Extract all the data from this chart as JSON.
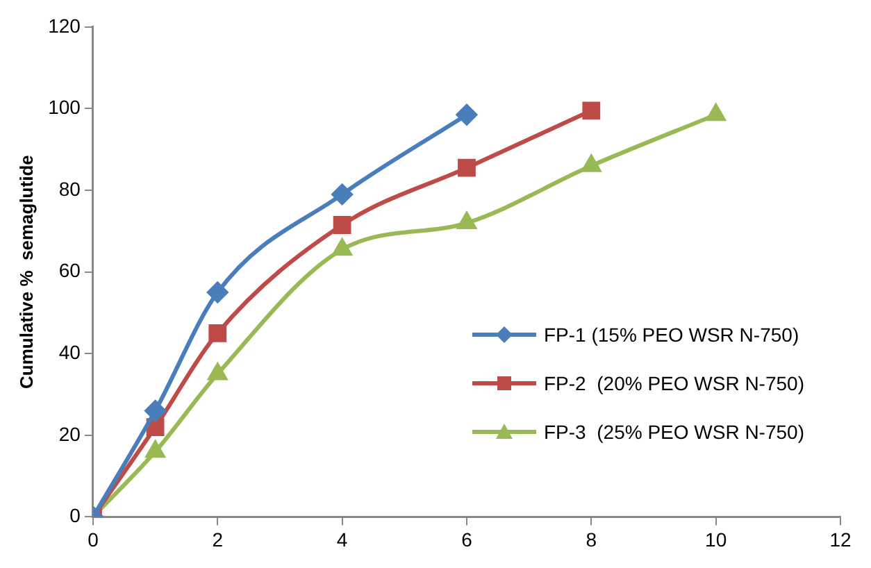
{
  "chart_data": {
    "type": "line",
    "ylabel": "Cumulative %  semaglutide",
    "xlim": [
      0,
      12
    ],
    "xticks": [
      0,
      2,
      4,
      6,
      8,
      10,
      12
    ],
    "ylim": [
      0,
      120
    ],
    "yticks": [
      0,
      20,
      40,
      60,
      80,
      100,
      120
    ],
    "grid": false,
    "legend": "right",
    "line_style": "solid",
    "series": [
      {
        "name": "FP-1 (15% PEO WSR N-750)",
        "color": "#4a7ebb",
        "marker": "diamond",
        "x": [
          0,
          1,
          2,
          4,
          6
        ],
        "values": [
          0,
          26,
          55,
          79,
          98.5
        ]
      },
      {
        "name": "FP-2  (20% PEO WSR N-750)",
        "color": "#be4b48",
        "marker": "square",
        "x": [
          0,
          1,
          2,
          4,
          6,
          8
        ],
        "values": [
          0,
          22,
          45,
          71.5,
          85.5,
          99.5
        ]
      },
      {
        "name": "FP-3  (25% PEO WSR N-750)",
        "color": "#98b954",
        "marker": "triangle",
        "x": [
          0,
          1,
          2,
          4,
          6,
          8,
          10
        ],
        "values": [
          0,
          16,
          35,
          65.5,
          72,
          86,
          98.5
        ]
      }
    ]
  }
}
